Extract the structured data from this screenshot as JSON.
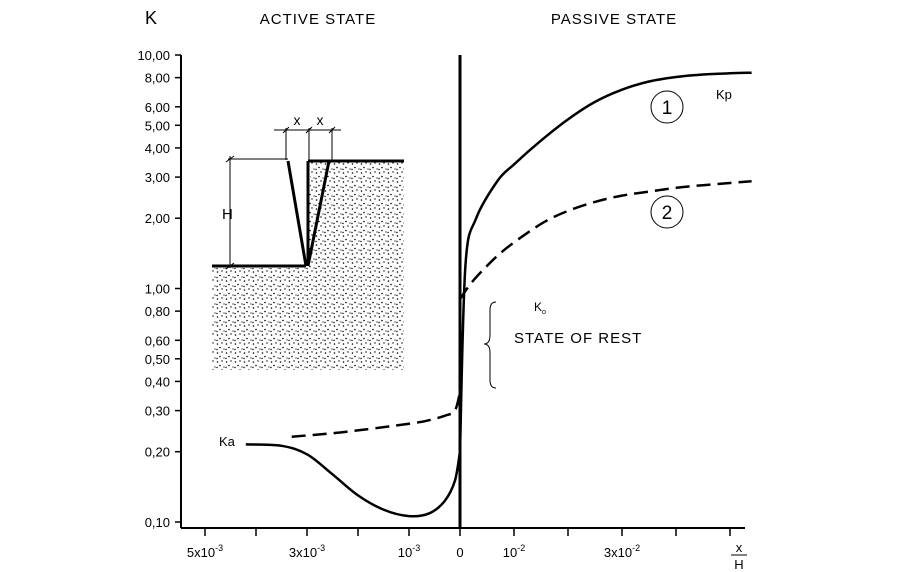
{
  "chart_data": {
    "type": "line",
    "title": "",
    "ylabel": "K",
    "ylim": [
      0.1,
      10
    ],
    "yscale": "log",
    "yticks": [
      10.0,
      8.0,
      6.0,
      5.0,
      4.0,
      3.0,
      2.0,
      1.0,
      0.8,
      0.6,
      0.5,
      0.4,
      0.3,
      0.2,
      0.1
    ],
    "ytick_labels": [
      "10,00",
      "8,00",
      "6,00",
      "5,00",
      "4,00",
      "3,00",
      "2,00",
      "1,00",
      "0,80",
      "0,60",
      "0,50",
      "0,40",
      "0,30",
      "0,20",
      "0,10"
    ],
    "xlabel_top": "x",
    "xlabel_bottom": "H",
    "xticks": [
      {
        "x": -0.005,
        "label": "5x10",
        "exp": "-3"
      },
      {
        "x": -0.003,
        "label": "3x10",
        "exp": "-3"
      },
      {
        "x": -0.001,
        "label": "10",
        "exp": "-3"
      },
      {
        "x": 0,
        "label": "0",
        "exp": ""
      },
      {
        "x": 0.01,
        "label": "10",
        "exp": "-2"
      },
      {
        "x": 0.03,
        "label": "3x10",
        "exp": "-2"
      }
    ],
    "regions": {
      "left": "ACTIVE STATE",
      "right": "PASSIVE STATE"
    },
    "series": [
      {
        "name": "1",
        "style": "solid",
        "label": "Kp",
        "points": [
          {
            "x": 0,
            "y": 0.2
          },
          {
            "x": 0.001,
            "y": 1.25
          },
          {
            "x": 0.003,
            "y": 2.0
          },
          {
            "x": 0.007,
            "y": 2.9
          },
          {
            "x": 0.01,
            "y": 3.4
          },
          {
            "x": 0.015,
            "y": 4.3
          },
          {
            "x": 0.02,
            "y": 5.3
          },
          {
            "x": 0.025,
            "y": 6.3
          },
          {
            "x": 0.03,
            "y": 7.1
          },
          {
            "x": 0.035,
            "y": 7.7
          },
          {
            "x": 0.04,
            "y": 8.05
          },
          {
            "x": 0.045,
            "y": 8.25
          },
          {
            "x": 0.05,
            "y": 8.35
          },
          {
            "x": 0.054,
            "y": 8.4
          }
        ]
      },
      {
        "name": "2",
        "style": "dashed",
        "label": "",
        "points": [
          {
            "x": 0,
            "y": 0.9
          },
          {
            "x": 0.002,
            "y": 1.05
          },
          {
            "x": 0.005,
            "y": 1.25
          },
          {
            "x": 0.008,
            "y": 1.45
          },
          {
            "x": 0.012,
            "y": 1.7
          },
          {
            "x": 0.016,
            "y": 1.95
          },
          {
            "x": 0.02,
            "y": 2.15
          },
          {
            "x": 0.025,
            "y": 2.35
          },
          {
            "x": 0.03,
            "y": 2.5
          },
          {
            "x": 0.035,
            "y": 2.6
          },
          {
            "x": 0.04,
            "y": 2.7
          },
          {
            "x": 0.045,
            "y": 2.77
          },
          {
            "x": 0.05,
            "y": 2.83
          },
          {
            "x": 0.054,
            "y": 2.88
          }
        ]
      },
      {
        "name": "Ka",
        "style": "solid",
        "label": "Ka",
        "points": [
          {
            "x": -0.0042,
            "y": 0.215
          },
          {
            "x": -0.0035,
            "y": 0.212
          },
          {
            "x": -0.003,
            "y": 0.195
          },
          {
            "x": -0.0025,
            "y": 0.16
          },
          {
            "x": -0.002,
            "y": 0.13
          },
          {
            "x": -0.0015,
            "y": 0.113
          },
          {
            "x": -0.001,
            "y": 0.106
          },
          {
            "x": -0.0006,
            "y": 0.109
          },
          {
            "x": -0.0003,
            "y": 0.123
          },
          {
            "x": -0.0001,
            "y": 0.15
          },
          {
            "x": 0,
            "y": 0.2
          }
        ]
      },
      {
        "name": "Ka-dashed",
        "style": "dashed",
        "label": "",
        "points": [
          {
            "x": -0.0033,
            "y": 0.232
          },
          {
            "x": -0.0025,
            "y": 0.24
          },
          {
            "x": -0.0018,
            "y": 0.25
          },
          {
            "x": -0.0012,
            "y": 0.26
          },
          {
            "x": -0.0007,
            "y": 0.27
          },
          {
            "x": -0.0003,
            "y": 0.285
          },
          {
            "x": -0.0001,
            "y": 0.3
          },
          {
            "x": 0,
            "y": 0.36
          }
        ]
      }
    ],
    "annotations": {
      "k0": "K",
      "k0_sub": "o",
      "rest": "STATE OF REST",
      "inset": {
        "width_label": "x",
        "depth_label": "H"
      }
    }
  }
}
